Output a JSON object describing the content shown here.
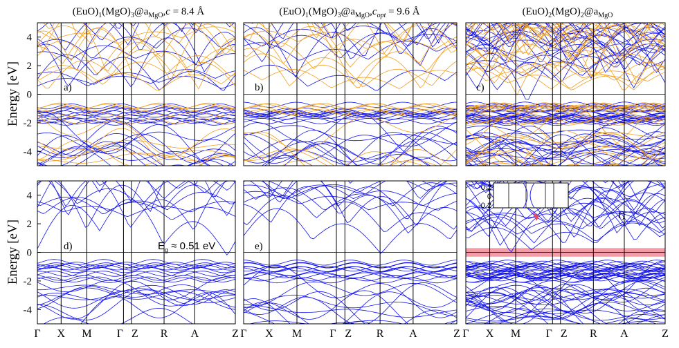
{
  "figure": {
    "y_axis_label": "Energy [eV]",
    "y_ticks": [
      "4",
      "2",
      "0",
      "-2",
      "-4"
    ],
    "k_labels": [
      "Γ",
      "X",
      "M",
      "Γ",
      "Z",
      "R",
      "A",
      "Z"
    ],
    "colors": {
      "spin_up": "#1010ee",
      "spin_down": "#f0a020",
      "frame": "#000000",
      "gap_band": "#e84a5f"
    }
  },
  "columns": [
    {
      "title_parts": [
        "(EuO)",
        "1",
        "(MgO)",
        "3",
        "@a",
        "MgO",
        ",",
        "c",
        " = 8.4 Å"
      ]
    },
    {
      "title_parts": [
        "(EuO)",
        "1",
        "(MgO)",
        "3",
        "@a",
        "MgO",
        ",",
        "c",
        "opt",
        " = 9.6 Å"
      ]
    },
    {
      "title_parts": [
        "(EuO)",
        "2",
        "(MgO)",
        "2",
        "@a",
        "MgO"
      ]
    }
  ],
  "panels": [
    {
      "label": "a)",
      "spin": "both"
    },
    {
      "label": "b)",
      "spin": "both"
    },
    {
      "label": "c)",
      "spin": "both"
    },
    {
      "label": "d)",
      "spin": "up",
      "annotation_main": "E",
      "annotation_sub": "g",
      "annotation_rest": " ≈ 0.51 eV"
    },
    {
      "label": "e)",
      "spin": "up"
    },
    {
      "label": "f)",
      "spin": "up",
      "inset_ticks": [
        "0.2",
        "0",
        "-0.2"
      ]
    }
  ]
}
